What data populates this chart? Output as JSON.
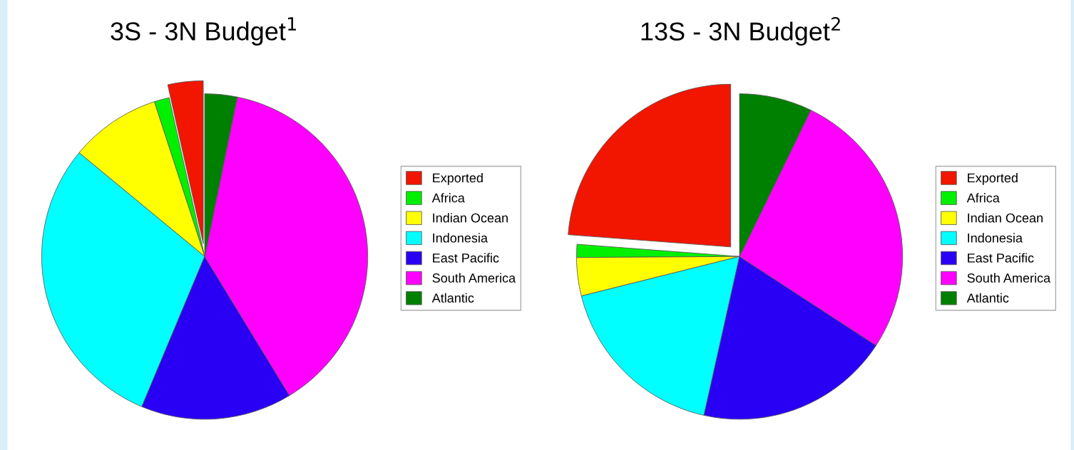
{
  "chart_data": [
    {
      "type": "pie",
      "title": "3S - 3N Budget$^{1}$",
      "legend": "right",
      "categories": [
        "Exported",
        "Africa",
        "Indian Ocean",
        "Indonesia",
        "East Pacific",
        "South America",
        "Atlantic"
      ],
      "values": [
        3.5,
        1.5,
        9,
        29.7,
        15,
        38.1,
        3.2
      ],
      "colors": [
        "#f21500",
        "#00f000",
        "#ffff00",
        "#00ffff",
        "#2a00f5",
        "#ff00ff",
        "#008000"
      ]
    },
    {
      "type": "pie",
      "title": "13S - 3N Budget$^{2}$",
      "legend": "right",
      "categories": [
        "Exported",
        "Africa",
        "Indian Ocean",
        "Indonesia",
        "East Pacific",
        "South America",
        "Atlantic"
      ],
      "values": [
        23.8,
        1.3,
        3.8,
        17.6,
        19.3,
        27,
        7.2
      ],
      "colors": [
        "#f21500",
        "#00f000",
        "#ffff00",
        "#00ffff",
        "#2a00f5",
        "#ff00ff",
        "#008000"
      ]
    }
  ]
}
